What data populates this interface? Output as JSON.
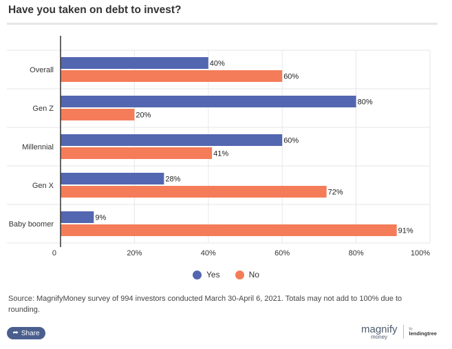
{
  "header": {
    "title": "Have you taken on debt to invest?"
  },
  "chart_data": {
    "type": "bar",
    "orientation": "horizontal",
    "categories": [
      "Overall",
      "Gen Z",
      "Millennial",
      "Gen X",
      "Baby boomer"
    ],
    "series": [
      {
        "name": "Yes",
        "color": "#5366b0",
        "values": [
          40,
          80,
          60,
          28,
          9
        ],
        "labels": [
          "40%",
          "80%",
          "60%",
          "28%",
          "9%"
        ]
      },
      {
        "name": "No",
        "color": "#f47c59",
        "values": [
          60,
          20,
          41,
          72,
          91
        ],
        "labels": [
          "60%",
          "20%",
          "41%",
          "72%",
          "91%"
        ]
      }
    ],
    "xlim": [
      0,
      100
    ],
    "xticks": [
      {
        "value": 0,
        "label": "0"
      },
      {
        "value": 20,
        "label": "20%"
      },
      {
        "value": 40,
        "label": "40%"
      },
      {
        "value": 60,
        "label": "60%"
      },
      {
        "value": 80,
        "label": "80%"
      },
      {
        "value": 100,
        "label": "100%"
      }
    ],
    "grid": true,
    "legend_position": "bottom-center"
  },
  "legend": {
    "yes_label": "Yes",
    "no_label": "No",
    "yes_color": "#5366b0",
    "no_color": "#f47c59"
  },
  "source": {
    "text": "Source: MagnifyMoney survey of 994 investors conducted March 30-April 6, 2021. Totals may not add to 100% due to rounding."
  },
  "share": {
    "label": "Share",
    "icon": "share-icon"
  },
  "brand": {
    "magnify": "magnify",
    "money": "money",
    "by": "by",
    "lendingtree": "lendingtree"
  }
}
